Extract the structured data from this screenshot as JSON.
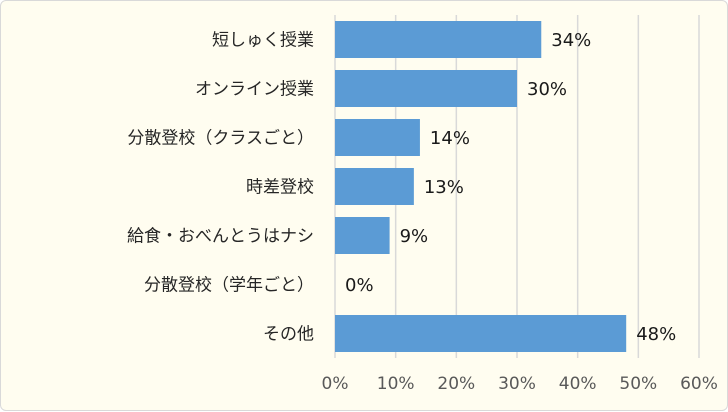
{
  "chart_data": {
    "type": "bar",
    "orientation": "horizontal",
    "categories": [
      "短しゅく授業",
      "オンライン授業",
      "分散登校（クラスごと）",
      "時差登校",
      "給食・おべんとうはナシ",
      "分散登校（学年ごと）",
      "その他"
    ],
    "values": [
      34,
      30,
      14,
      13,
      9,
      0,
      48
    ],
    "data_labels": [
      "34%",
      "30%",
      "14%",
      "13%",
      "9%",
      "0%",
      "48%"
    ],
    "xlim": [
      0,
      60
    ],
    "xticks": [
      0,
      10,
      20,
      30,
      40,
      50,
      60
    ],
    "xtick_labels": [
      "0%",
      "10%",
      "20%",
      "30%",
      "40%",
      "50%",
      "60%"
    ],
    "grid": true,
    "bar_color": "#5b9bd5",
    "background": "#fffdf0"
  }
}
